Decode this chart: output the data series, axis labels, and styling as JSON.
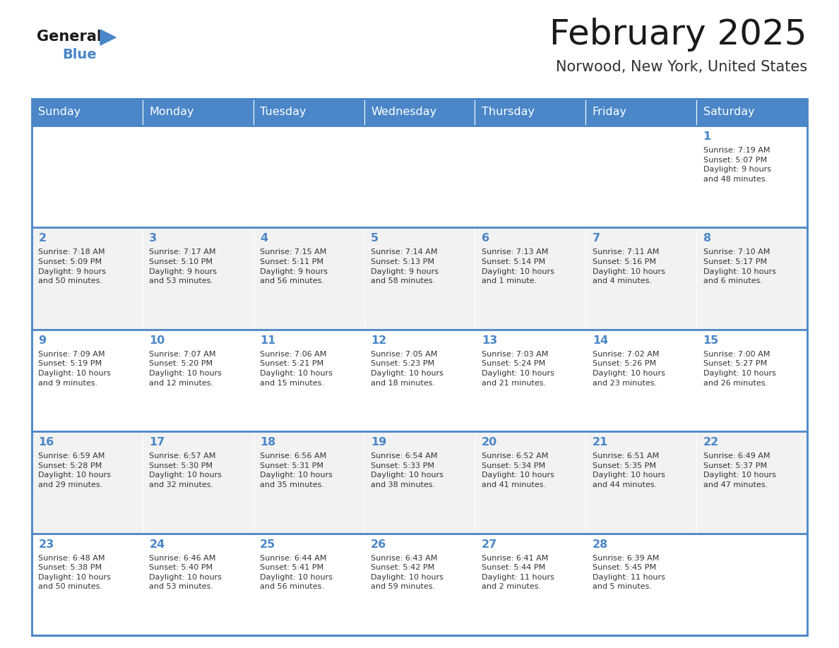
{
  "title": "February 2025",
  "subtitle": "Norwood, New York, United States",
  "header_bg": "#4a86c8",
  "header_text": "#ffffff",
  "weekdays": [
    "Sunday",
    "Monday",
    "Tuesday",
    "Wednesday",
    "Thursday",
    "Friday",
    "Saturday"
  ],
  "row_bg_odd": "#f2f2f2",
  "row_bg_even": "#ffffff",
  "border_color": "#4a86c8",
  "day_number_color": "#4a86c8",
  "info_text_color": "#333333",
  "title_color": "#1a1a1a",
  "subtitle_color": "#333333",
  "logo_general_color": "#1a1a1a",
  "logo_blue_color": "#4a86c8",
  "calendar_data": [
    [
      {
        "day": "",
        "sunrise": "",
        "sunset": "",
        "daylight": ""
      },
      {
        "day": "",
        "sunrise": "",
        "sunset": "",
        "daylight": ""
      },
      {
        "day": "",
        "sunrise": "",
        "sunset": "",
        "daylight": ""
      },
      {
        "day": "",
        "sunrise": "",
        "sunset": "",
        "daylight": ""
      },
      {
        "day": "",
        "sunrise": "",
        "sunset": "",
        "daylight": ""
      },
      {
        "day": "",
        "sunrise": "",
        "sunset": "",
        "daylight": ""
      },
      {
        "day": "1",
        "sunrise": "7:19 AM",
        "sunset": "5:07 PM",
        "daylight": "9 hours\nand 48 minutes."
      }
    ],
    [
      {
        "day": "2",
        "sunrise": "7:18 AM",
        "sunset": "5:09 PM",
        "daylight": "9 hours\nand 50 minutes."
      },
      {
        "day": "3",
        "sunrise": "7:17 AM",
        "sunset": "5:10 PM",
        "daylight": "9 hours\nand 53 minutes."
      },
      {
        "day": "4",
        "sunrise": "7:15 AM",
        "sunset": "5:11 PM",
        "daylight": "9 hours\nand 56 minutes."
      },
      {
        "day": "5",
        "sunrise": "7:14 AM",
        "sunset": "5:13 PM",
        "daylight": "9 hours\nand 58 minutes."
      },
      {
        "day": "6",
        "sunrise": "7:13 AM",
        "sunset": "5:14 PM",
        "daylight": "10 hours\nand 1 minute."
      },
      {
        "day": "7",
        "sunrise": "7:11 AM",
        "sunset": "5:16 PM",
        "daylight": "10 hours\nand 4 minutes."
      },
      {
        "day": "8",
        "sunrise": "7:10 AM",
        "sunset": "5:17 PM",
        "daylight": "10 hours\nand 6 minutes."
      }
    ],
    [
      {
        "day": "9",
        "sunrise": "7:09 AM",
        "sunset": "5:19 PM",
        "daylight": "10 hours\nand 9 minutes."
      },
      {
        "day": "10",
        "sunrise": "7:07 AM",
        "sunset": "5:20 PM",
        "daylight": "10 hours\nand 12 minutes."
      },
      {
        "day": "11",
        "sunrise": "7:06 AM",
        "sunset": "5:21 PM",
        "daylight": "10 hours\nand 15 minutes."
      },
      {
        "day": "12",
        "sunrise": "7:05 AM",
        "sunset": "5:23 PM",
        "daylight": "10 hours\nand 18 minutes."
      },
      {
        "day": "13",
        "sunrise": "7:03 AM",
        "sunset": "5:24 PM",
        "daylight": "10 hours\nand 21 minutes."
      },
      {
        "day": "14",
        "sunrise": "7:02 AM",
        "sunset": "5:26 PM",
        "daylight": "10 hours\nand 23 minutes."
      },
      {
        "day": "15",
        "sunrise": "7:00 AM",
        "sunset": "5:27 PM",
        "daylight": "10 hours\nand 26 minutes."
      }
    ],
    [
      {
        "day": "16",
        "sunrise": "6:59 AM",
        "sunset": "5:28 PM",
        "daylight": "10 hours\nand 29 minutes."
      },
      {
        "day": "17",
        "sunrise": "6:57 AM",
        "sunset": "5:30 PM",
        "daylight": "10 hours\nand 32 minutes."
      },
      {
        "day": "18",
        "sunrise": "6:56 AM",
        "sunset": "5:31 PM",
        "daylight": "10 hours\nand 35 minutes."
      },
      {
        "day": "19",
        "sunrise": "6:54 AM",
        "sunset": "5:33 PM",
        "daylight": "10 hours\nand 38 minutes."
      },
      {
        "day": "20",
        "sunrise": "6:52 AM",
        "sunset": "5:34 PM",
        "daylight": "10 hours\nand 41 minutes."
      },
      {
        "day": "21",
        "sunrise": "6:51 AM",
        "sunset": "5:35 PM",
        "daylight": "10 hours\nand 44 minutes."
      },
      {
        "day": "22",
        "sunrise": "6:49 AM",
        "sunset": "5:37 PM",
        "daylight": "10 hours\nand 47 minutes."
      }
    ],
    [
      {
        "day": "23",
        "sunrise": "6:48 AM",
        "sunset": "5:38 PM",
        "daylight": "10 hours\nand 50 minutes."
      },
      {
        "day": "24",
        "sunrise": "6:46 AM",
        "sunset": "5:40 PM",
        "daylight": "10 hours\nand 53 minutes."
      },
      {
        "day": "25",
        "sunrise": "6:44 AM",
        "sunset": "5:41 PM",
        "daylight": "10 hours\nand 56 minutes."
      },
      {
        "day": "26",
        "sunrise": "6:43 AM",
        "sunset": "5:42 PM",
        "daylight": "10 hours\nand 59 minutes."
      },
      {
        "day": "27",
        "sunrise": "6:41 AM",
        "sunset": "5:44 PM",
        "daylight": "11 hours\nand 2 minutes."
      },
      {
        "day": "28",
        "sunrise": "6:39 AM",
        "sunset": "5:45 PM",
        "daylight": "11 hours\nand 5 minutes."
      },
      {
        "day": "",
        "sunrise": "",
        "sunset": "",
        "daylight": ""
      }
    ]
  ]
}
